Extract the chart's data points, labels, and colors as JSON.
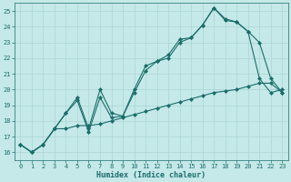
{
  "xlabel": "Humidex (Indice chaleur)",
  "bg_color": "#c5e8e8",
  "grid_color": "#b0d8d8",
  "line_color": "#1a6e6a",
  "xlim": [
    -0.5,
    23.5
  ],
  "ylim": [
    15.5,
    25.5
  ],
  "xticks": [
    0,
    1,
    2,
    3,
    4,
    5,
    6,
    7,
    8,
    9,
    10,
    11,
    12,
    13,
    14,
    15,
    16,
    17,
    18,
    19,
    20,
    21,
    22,
    23
  ],
  "yticks": [
    16,
    17,
    18,
    19,
    20,
    21,
    22,
    23,
    24,
    25
  ],
  "line1_y": [
    16.5,
    16.0,
    16.5,
    17.5,
    18.5,
    19.5,
    17.5,
    20.0,
    18.5,
    18.3,
    20.0,
    21.5,
    21.8,
    22.2,
    23.2,
    23.3,
    24.1,
    25.2,
    24.5,
    24.3,
    23.7,
    23.0,
    20.7,
    19.8
  ],
  "line2_y": [
    16.5,
    16.0,
    16.5,
    17.5,
    18.5,
    19.3,
    17.3,
    19.5,
    18.2,
    18.3,
    19.8,
    21.2,
    21.8,
    22.0,
    23.0,
    23.3,
    24.1,
    25.2,
    24.4,
    24.3,
    23.7,
    20.7,
    19.8,
    20.0
  ],
  "line3_y": [
    16.5,
    16.0,
    16.5,
    17.5,
    17.5,
    17.7,
    17.7,
    17.8,
    18.0,
    18.2,
    18.4,
    18.6,
    18.8,
    19.0,
    19.2,
    19.4,
    19.6,
    19.8,
    19.9,
    20.0,
    20.2,
    20.4,
    20.4,
    19.8
  ],
  "marker_size": 2.5,
  "line_width": 0.8,
  "tick_fontsize": 5.0,
  "xlabel_fontsize": 6.0
}
